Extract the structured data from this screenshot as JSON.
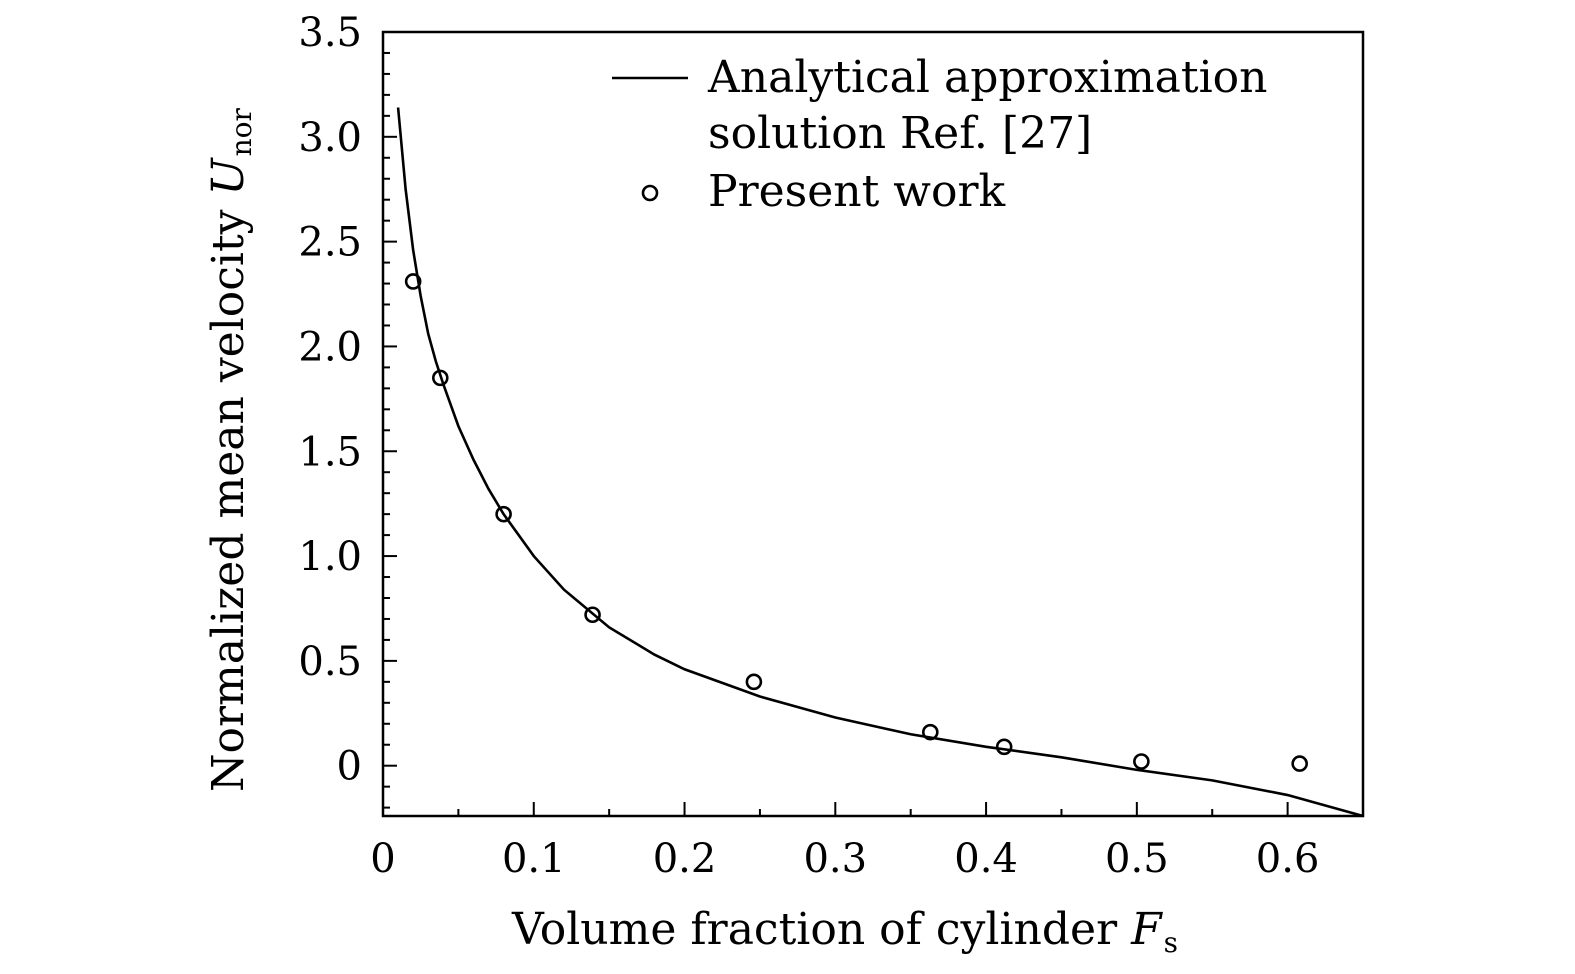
{
  "chart_data": {
    "type": "scatter",
    "xlabel": "Volume fraction of cylinder",
    "xlabel_symbol": "F",
    "xlabel_sub": "s",
    "ylabel": "Normalized mean velocity",
    "ylabel_symbol": "U",
    "ylabel_sub": "nor",
    "xlim": [
      0,
      0.65
    ],
    "ylim": [
      -0.24,
      3.5
    ],
    "xticks": [
      {
        "value": 0,
        "label": "0"
      },
      {
        "value": 0.1,
        "label": "0.1"
      },
      {
        "value": 0.2,
        "label": "0.2"
      },
      {
        "value": 0.3,
        "label": "0.3"
      },
      {
        "value": 0.4,
        "label": "0.4"
      },
      {
        "value": 0.5,
        "label": "0.5"
      },
      {
        "value": 0.6,
        "label": "0.6"
      }
    ],
    "yticks": [
      {
        "value": 0,
        "label": "0"
      },
      {
        "value": 0.5,
        "label": "0.5"
      },
      {
        "value": 1.0,
        "label": "1.0"
      },
      {
        "value": 1.5,
        "label": "1.5"
      },
      {
        "value": 2.0,
        "label": "2.0"
      },
      {
        "value": 2.5,
        "label": "2.5"
      },
      {
        "value": 3.0,
        "label": "3.0"
      },
      {
        "value": 3.5,
        "label": "3.5"
      }
    ],
    "grid": false,
    "legend_position": "top-right",
    "series": [
      {
        "name": "Analytical approximation solution Ref. [27]",
        "legend_lines": [
          "Analytical approximation",
          "solution Ref. [27]"
        ],
        "kind": "line",
        "color": "#000000",
        "x": [
          0.01,
          0.015,
          0.02,
          0.025,
          0.03,
          0.035,
          0.04,
          0.05,
          0.06,
          0.07,
          0.08,
          0.1,
          0.12,
          0.15,
          0.18,
          0.2,
          0.25,
          0.3,
          0.35,
          0.4,
          0.45,
          0.5,
          0.55,
          0.6,
          0.65
        ],
        "y": [
          3.14,
          2.75,
          2.46,
          2.24,
          2.06,
          1.93,
          1.82,
          1.62,
          1.46,
          1.32,
          1.2,
          1.0,
          0.84,
          0.66,
          0.53,
          0.46,
          0.33,
          0.23,
          0.15,
          0.09,
          0.04,
          -0.02,
          -0.07,
          -0.14,
          -0.24
        ]
      },
      {
        "name": "Present work",
        "kind": "scatter",
        "marker": "open-circle",
        "color": "#000000",
        "x": [
          0.02,
          0.038,
          0.08,
          0.139,
          0.246,
          0.363,
          0.412,
          0.503,
          0.608
        ],
        "y": [
          2.31,
          1.85,
          1.2,
          0.72,
          0.4,
          0.16,
          0.09,
          0.02,
          0.01
        ]
      }
    ]
  }
}
